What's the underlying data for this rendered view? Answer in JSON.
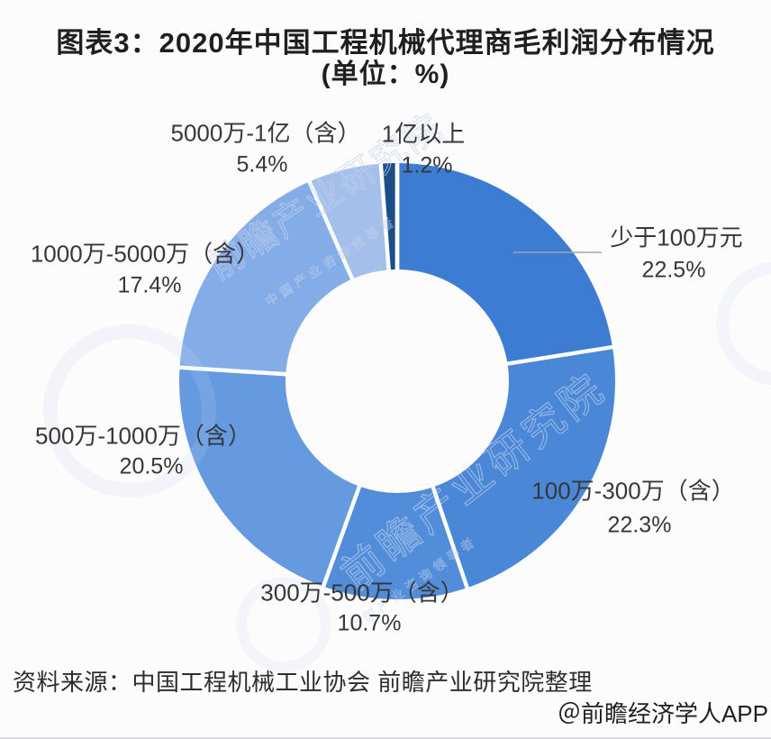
{
  "title": {
    "line1": "图表3：2020年中国工程机械代理商毛利润分布情况",
    "line2": "(单位：%)"
  },
  "chart_data": {
    "type": "pie",
    "subtype": "donut",
    "title": "2020年中国工程机械代理商毛利润分布情况",
    "unit": "%",
    "start_angle_deg": 0,
    "direction": "clockwise",
    "slices": [
      {
        "label": "少于100万元",
        "value": 22.5,
        "color": "#3c7dd3"
      },
      {
        "label": "100万-300万（含）",
        "value": 22.3,
        "color": "#4a87d6"
      },
      {
        "label": "300万-500万（含）",
        "value": 10.7,
        "color": "#528dd9"
      },
      {
        "label": "500万-1000万（含）",
        "value": 20.5,
        "color": "#659ae1"
      },
      {
        "label": "1000万-5000万（含）",
        "value": 17.4,
        "color": "#84ade8"
      },
      {
        "label": "5000万-1亿（含）",
        "value": 5.4,
        "color": "#a3bfea"
      },
      {
        "label": "1亿以上",
        "value": 1.2,
        "color": "#1b4d86"
      }
    ]
  },
  "source_line": "资料来源：中国工程机械工业协会 前瞻产业研究院整理",
  "footer_credit": "＠前瞻经济学人APP",
  "watermark": {
    "text": "前瞻产业研究院",
    "subtext": "中国产业咨询领导者"
  }
}
